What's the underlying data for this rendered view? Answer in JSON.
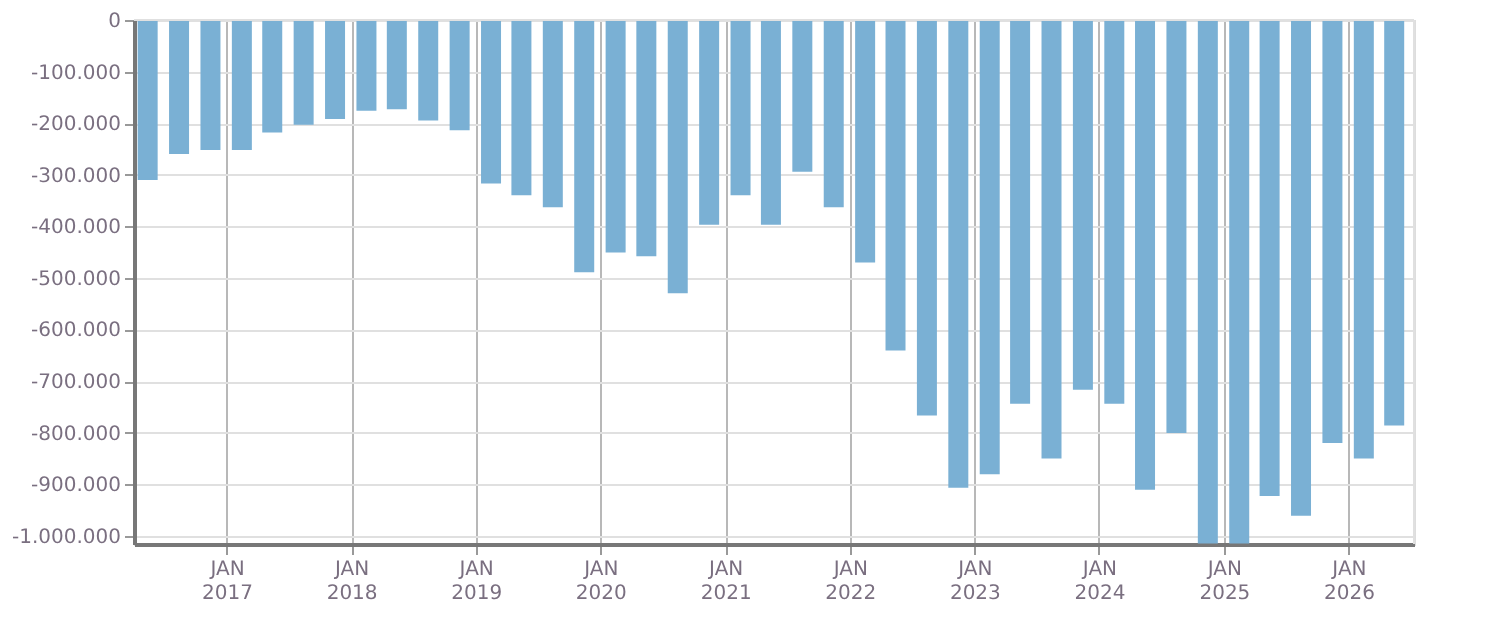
{
  "chart_data": {
    "type": "bar",
    "x": [
      "2016-05-15",
      "2016-08-15",
      "2016-11-15",
      "2017-02-15",
      "2017-05-15",
      "2017-08-15",
      "2017-11-15",
      "2018-02-15",
      "2018-05-15",
      "2018-08-15",
      "2018-11-15",
      "2019-02-15",
      "2019-05-15",
      "2019-08-15",
      "2019-11-15",
      "2020-02-15",
      "2020-05-15",
      "2020-08-15",
      "2020-11-15",
      "2021-02-15",
      "2021-05-15",
      "2021-08-15",
      "2021-11-15",
      "2022-02-15",
      "2022-05-15",
      "2022-08-15",
      "2022-11-15",
      "2023-02-15",
      "2023-05-15",
      "2023-08-15",
      "2023-11-15",
      "2024-02-15",
      "2024-05-15",
      "2024-08-15",
      "2024-11-15",
      "2025-02-15",
      "2025-05-15",
      "2025-08-15",
      "2025-11-15",
      "2026-02-15",
      "2026-05-15"
    ],
    "series": [
      {
        "color": "#7ab0d4",
        "values": [
          -310000,
          -260000,
          -252000,
          -252000,
          -218000,
          -203000,
          -192000,
          -176000,
          -173000,
          -195000,
          -214000,
          -317000,
          -340000,
          -363000,
          -489000,
          -451000,
          -458000,
          -530000,
          -397000,
          -340000,
          -397000,
          -294000,
          -363000,
          -470000,
          -641000,
          -767000,
          -907000,
          -881000,
          -744000,
          -850000,
          -717000,
          -744000,
          -911000,
          -801000,
          -1015000,
          -1015000,
          -923000,
          -961000,
          -820000,
          -850000,
          -786000
        ]
      }
    ],
    "xlim": [
      "2016-04-05",
      "2026-07-12"
    ],
    "xticks": [
      {
        "value": "2017-01-01",
        "label": "JAN 2017"
      },
      {
        "value": "2018-01-01",
        "label": "JAN 2018"
      },
      {
        "value": "2019-01-01",
        "label": "JAN 2019"
      },
      {
        "value": "2020-01-01",
        "label": "JAN 2020"
      },
      {
        "value": "2021-01-01",
        "label": "JAN 2021"
      },
      {
        "value": "2022-01-01",
        "label": "JAN 2022"
      },
      {
        "value": "2023-01-01",
        "label": "JAN 2023"
      },
      {
        "value": "2024-01-01",
        "label": "JAN 2024"
      },
      {
        "value": "2025-01-01",
        "label": "JAN 2025"
      },
      {
        "value": "2026-01-01",
        "label": "JAN 2026"
      }
    ],
    "ylim": [
      -1016000,
      0
    ],
    "yticks": [
      0,
      {
        "value": -100000,
        "label": "-100.000"
      },
      {
        "value": -200000,
        "label": "-200.000"
      },
      {
        "value": -300000,
        "label": "-300.000"
      },
      {
        "value": -400000,
        "label": "-400.000"
      },
      {
        "value": -500000,
        "label": "-500.000"
      },
      {
        "value": -600000,
        "label": "-600.000"
      },
      {
        "value": -700000,
        "label": "-700.000"
      },
      {
        "value": -800000,
        "label": "-800.000"
      },
      {
        "value": -900000,
        "label": "-900.000"
      },
      {
        "value": -1000000,
        "label": "-1.000.000"
      }
    ],
    "grid": true
  }
}
